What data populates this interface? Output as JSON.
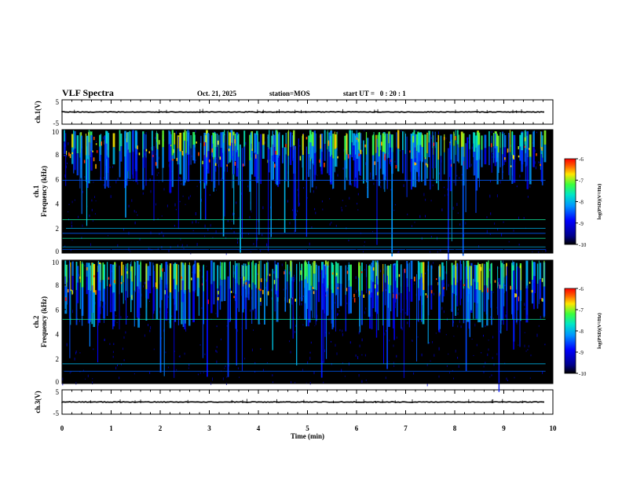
{
  "header": {
    "title": "VLF Spectra",
    "date": "Oct. 21, 2025",
    "station": "station=MOS",
    "start_ut": "start UT =   0 : 20 : 1"
  },
  "colors": {
    "background": "#000000",
    "axis": "#000000",
    "trace": "#000000"
  },
  "chart_data": [
    {
      "id": "ch1-waveform",
      "type": "line",
      "ylabel": "ch.1(V)",
      "ylim": [
        -5,
        5
      ],
      "yticks": [
        "5",
        "-5"
      ],
      "xlim": [
        0,
        10
      ],
      "baseline": 0,
      "duration_min": 9.85
    },
    {
      "id": "ch1-spectrogram",
      "type": "heatmap",
      "ylabel_lines": [
        "ch.1",
        "Frequency (kHz)"
      ],
      "ylim": [
        0,
        10
      ],
      "yticks": [
        "0",
        "2",
        "4",
        "6",
        "8",
        "10"
      ],
      "xlim": [
        0,
        10
      ],
      "duration_min": 9.85,
      "emission_band_khz": [
        5.5,
        9.5
      ],
      "tone_lines_khz": [
        0.3,
        0.5,
        1.2,
        1.6,
        2.0,
        2.7,
        5.9
      ],
      "colorbar": {
        "label": "log(PSD)(V²/Hz)",
        "range": [
          -10,
          -6
        ],
        "ticks": [
          "-6",
          "-7",
          "-8",
          "-9",
          "-10"
        ]
      }
    },
    {
      "id": "ch2-spectrogram",
      "type": "heatmap",
      "ylabel_lines": [
        "ch.2",
        "Frequency (kHz)"
      ],
      "ylim": [
        0,
        10
      ],
      "yticks": [
        "0",
        "2",
        "4",
        "6",
        "8",
        "10"
      ],
      "xlim": [
        0,
        10
      ],
      "duration_min": 9.85,
      "emission_band_khz": [
        5.0,
        9.5
      ],
      "tone_lines_khz": [
        1.0,
        1.6,
        5.2
      ],
      "colorbar": {
        "label": "log(PSD)(V²/Hz)",
        "range": [
          -10,
          -6
        ],
        "ticks": [
          "-6",
          "-7",
          "-8",
          "-9",
          "-10"
        ]
      }
    },
    {
      "id": "ch3-waveform",
      "type": "line",
      "ylabel": "ch.3(V)",
      "ylim": [
        -5,
        5
      ],
      "yticks": [
        "5",
        "-5"
      ],
      "xlim": [
        0,
        10
      ],
      "baseline": 0,
      "duration_min": 9.85
    }
  ],
  "x_axis": {
    "label": "Time (min)",
    "range": [
      0,
      10
    ],
    "ticks": [
      "0",
      "1",
      "2",
      "3",
      "4",
      "5",
      "6",
      "7",
      "8",
      "9",
      "10"
    ]
  }
}
